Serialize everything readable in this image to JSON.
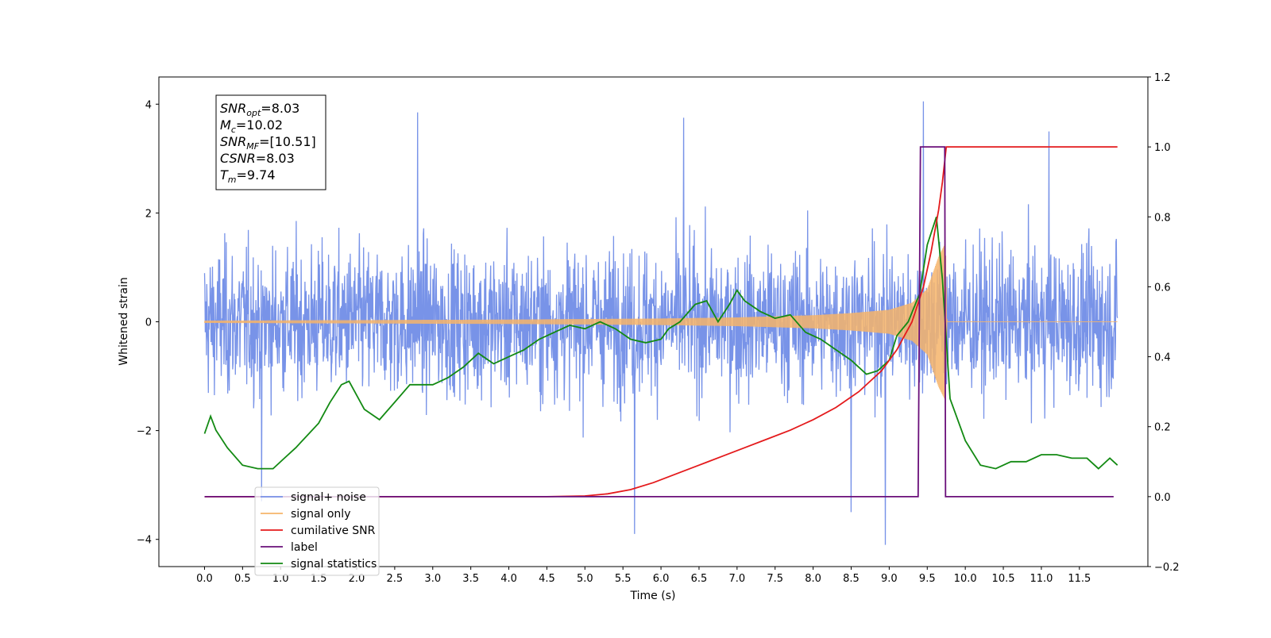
{
  "chart_data": {
    "type": "line",
    "title": "",
    "xlabel": "Time (s)",
    "ylabel": "Whitened strain",
    "xlim": [
      -0.6,
      12.4
    ],
    "ylim": [
      -4.5,
      4.5
    ],
    "y2lim": [
      -0.2,
      1.2
    ],
    "x_ticks": [
      0.0,
      0.5,
      1.0,
      1.5,
      2.0,
      2.5,
      3.0,
      3.5,
      4.0,
      4.5,
      5.0,
      5.5,
      6.0,
      6.5,
      7.0,
      7.5,
      8.0,
      8.5,
      9.0,
      9.5,
      10.0,
      10.5,
      11.0,
      11.5
    ],
    "x_tick_labels": [
      "0.0",
      "0.5",
      "1.0",
      "1.5",
      "2.0",
      "2.5",
      "3.0",
      "3.5",
      "4.0",
      "4.5",
      "5.0",
      "5.5",
      "6.0",
      "6.5",
      "7.0",
      "7.5",
      "8.0",
      "8.5",
      "9.0",
      "9.5",
      "10.0",
      "10.5",
      "11.0",
      "11.5"
    ],
    "y_ticks": [
      4,
      2,
      0,
      -2,
      -4
    ],
    "y_tick_labels": [
      "4",
      "2",
      "0",
      "−2",
      "−4"
    ],
    "y2_ticks": [
      1.2,
      1.0,
      0.8,
      0.6,
      0.4,
      0.2,
      0.0,
      -0.2
    ],
    "y2_tick_labels": [
      "1.2",
      "1.0",
      "0.8",
      "0.6",
      "0.4",
      "0.2",
      "0.0",
      "−0.2"
    ],
    "grid": false,
    "legend_position": "lower-left",
    "annotation": {
      "lines": [
        {
          "main": "SNR",
          "sub": "opt",
          "rest": "=8.03"
        },
        {
          "main": "M",
          "sub": "c",
          "rest": "=10.02"
        },
        {
          "main": "SNR",
          "sub": "MF",
          "rest": "=[10.51]"
        },
        {
          "main": "CSNR",
          "sub": "",
          "rest": "=8.03"
        },
        {
          "main": "T",
          "sub": "m",
          "rest": "=9.74"
        }
      ]
    },
    "series": [
      {
        "name": "signal+ noise",
        "color": "#7893e8",
        "axis": "left",
        "description_values": "noise-dominated strain, approx. ±2.5 with peaks near ±3.9",
        "t_start": 0.0,
        "t_end": 12.0,
        "peaks": [
          [
            2.8,
            3.85
          ],
          [
            6.3,
            3.75
          ],
          [
            9.45,
            4.05
          ],
          [
            11.1,
            3.5
          ],
          [
            5.65,
            -3.9
          ],
          [
            8.95,
            -4.1
          ],
          [
            8.5,
            -3.5
          ],
          [
            0.75,
            -3.3
          ]
        ]
      },
      {
        "name": "signal only",
        "color": "#f6b46a",
        "axis": "left",
        "envelope": [
          [
            0.0,
            0.02
          ],
          [
            4.0,
            0.04
          ],
          [
            6.0,
            0.06
          ],
          [
            7.0,
            0.08
          ],
          [
            8.0,
            0.12
          ],
          [
            8.5,
            0.16
          ],
          [
            9.0,
            0.22
          ],
          [
            9.3,
            0.35
          ],
          [
            9.5,
            0.6
          ],
          [
            9.65,
            1.2
          ],
          [
            9.74,
            1.45
          ],
          [
            9.76,
            0.0
          ],
          [
            12.0,
            0.0
          ]
        ]
      },
      {
        "name": "cumilative SNR",
        "color": "#e41a1c",
        "axis": "right",
        "x": [
          0.0,
          4.5,
          5.0,
          5.3,
          5.6,
          5.9,
          6.2,
          6.5,
          6.8,
          7.1,
          7.4,
          7.7,
          8.0,
          8.3,
          8.6,
          8.9,
          9.1,
          9.3,
          9.45,
          9.55,
          9.65,
          9.7,
          9.75,
          12.0
        ],
        "y": [
          0.0,
          0.0,
          0.002,
          0.008,
          0.02,
          0.04,
          0.065,
          0.09,
          0.115,
          0.14,
          0.165,
          0.19,
          0.22,
          0.255,
          0.3,
          0.36,
          0.42,
          0.5,
          0.6,
          0.7,
          0.82,
          0.9,
          1.0,
          1.0
        ]
      },
      {
        "name": "label",
        "color": "#6a0f7a",
        "axis": "right",
        "x": [
          0.0,
          9.38,
          9.41,
          9.73,
          9.74,
          11.95
        ],
        "y": [
          0.0,
          0.0,
          1.0,
          1.0,
          0.0,
          0.0
        ]
      },
      {
        "name": "signal statistics",
        "color": "#138a13",
        "axis": "right",
        "x": [
          0.0,
          0.08,
          0.15,
          0.3,
          0.5,
          0.7,
          0.9,
          1.05,
          1.2,
          1.5,
          1.65,
          1.8,
          1.9,
          2.1,
          2.3,
          2.5,
          2.7,
          3.0,
          3.2,
          3.4,
          3.6,
          3.8,
          4.0,
          4.2,
          4.4,
          4.6,
          4.8,
          5.0,
          5.2,
          5.4,
          5.6,
          5.8,
          6.0,
          6.1,
          6.25,
          6.45,
          6.6,
          6.75,
          6.9,
          7.0,
          7.1,
          7.3,
          7.5,
          7.7,
          7.9,
          8.1,
          8.3,
          8.5,
          8.7,
          8.85,
          9.0,
          9.1,
          9.25,
          9.4,
          9.5,
          9.62,
          9.7,
          9.8,
          10.0,
          10.2,
          10.4,
          10.6,
          10.8,
          11.0,
          11.2,
          11.4,
          11.6,
          11.75,
          11.9,
          12.0
        ],
        "y": [
          0.18,
          0.23,
          0.19,
          0.14,
          0.09,
          0.08,
          0.08,
          0.11,
          0.14,
          0.21,
          0.27,
          0.32,
          0.33,
          0.25,
          0.22,
          0.27,
          0.32,
          0.32,
          0.34,
          0.37,
          0.41,
          0.38,
          0.4,
          0.42,
          0.45,
          0.47,
          0.49,
          0.48,
          0.5,
          0.48,
          0.45,
          0.44,
          0.45,
          0.48,
          0.5,
          0.55,
          0.56,
          0.5,
          0.55,
          0.59,
          0.56,
          0.53,
          0.51,
          0.52,
          0.47,
          0.45,
          0.42,
          0.39,
          0.35,
          0.36,
          0.39,
          0.46,
          0.5,
          0.58,
          0.72,
          0.8,
          0.62,
          0.28,
          0.16,
          0.09,
          0.08,
          0.1,
          0.1,
          0.12,
          0.12,
          0.11,
          0.11,
          0.08,
          0.11,
          0.09
        ]
      }
    ]
  }
}
